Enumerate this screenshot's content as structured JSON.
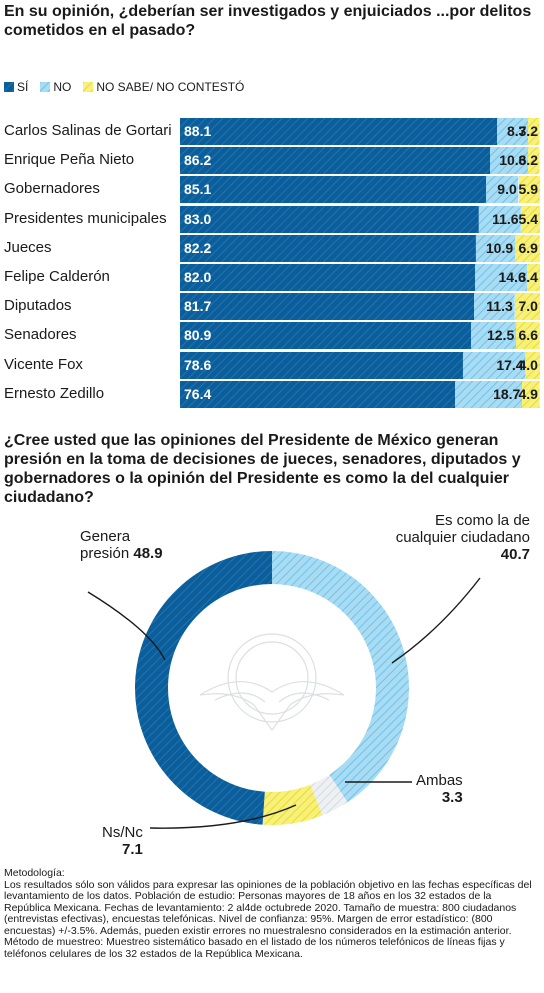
{
  "question1": "En su opinión, ¿deberían ser investigados y enjuiciados ...por delitos cometidos en el pasado?",
  "legend": {
    "si": "SÍ",
    "no": "NO",
    "ns": "NO SABE/ NO CONTESTÓ"
  },
  "colors": {
    "si": "#0b5e9a",
    "no": "#9fd6ef",
    "ns": "#f2e94e"
  },
  "chart_data": [
    {
      "type": "bar",
      "orientation": "horizontal-stacked",
      "categories": [
        "Carlos Salinas de Gortari",
        "Enrique Peña Nieto",
        "Gobernadores",
        "Presidentes municipales",
        "Jueces",
        "Felipe Calderón",
        "Diputados",
        "Senadores",
        "Vicente Fox",
        "Ernesto Zedillo"
      ],
      "series": [
        {
          "name": "SÍ",
          "values": [
            88.1,
            86.2,
            85.1,
            83.0,
            82.2,
            82.0,
            81.7,
            80.9,
            78.6,
            76.4
          ]
        },
        {
          "name": "NO",
          "values": [
            8.7,
            10.6,
            9.0,
            11.6,
            10.9,
            14.6,
            11.3,
            12.5,
            17.4,
            18.7
          ]
        },
        {
          "name": "NO SABE/ NO CONTESTÓ",
          "values": [
            3.2,
            3.2,
            5.9,
            5.4,
            6.9,
            3.4,
            7.0,
            6.6,
            4.0,
            4.9
          ]
        }
      ],
      "title": "En su opinión, ¿deberían ser investigados y enjuiciados ...por delitos cometidos en el pasado?",
      "legend_position": "top-left"
    },
    {
      "type": "pie",
      "style": "donut",
      "title": "¿Cree usted que las opiniones del Presidente de México generan presión en la toma de decisiones de jueces, senadores, diputados y gobernadores o la opinión del Presidente es como la del cualquier ciudadano?",
      "slices": [
        {
          "label": "Es como la de cualquier ciudadano",
          "value": 40.7
        },
        {
          "label": "Ambas",
          "value": 3.3
        },
        {
          "label": "Ns/Nc",
          "value": 7.1
        },
        {
          "label": "Genera presión",
          "value": 48.9
        }
      ]
    }
  ],
  "donut_labels": {
    "genera": {
      "line1": "Genera",
      "line2": "presión",
      "value": "48.9"
    },
    "ciudadano": {
      "line1": "Es como la de",
      "line2": "cualquier ciudadano",
      "value": "40.7"
    },
    "ambas": {
      "line1": "Ambas",
      "value": "3.3"
    },
    "nsnc": {
      "line1": "Ns/Nc",
      "value": "7.1"
    }
  },
  "question2": "¿Cree usted que las opiniones del Presidente de México generan presión en la toma de decisiones de jueces, senadores, diputados y gobernadores o la opinión del Presidente es como la del cualquier ciudadano?",
  "methodology": {
    "title": "Metodología:",
    "text": "Los resultados sólo son válidos para expresar las opiniones de la población objetivo en las fechas específicas del levantamiento de los datos. Población de estudio: Personas mayores de 18 años en los 32 estados de la República Mexicana. Fechas de levantamiento: 2 al4de octubrede 2020. Tamaño de muestra: 800 ciudadanos (entrevistas efectivas), encuestas telefónicas. Nivel de confianza: 95%. Margen de error estadístico: (800 encuestas) +/-3.5%. Además, pueden existir errores no muestralesno considerados en la estimación anterior. Método de muestreo: Muestreo sistemático basado en el listado de los números telefónicos de líneas fijas y teléfonos celulares de los 32 estados de la República Mexicana."
  }
}
